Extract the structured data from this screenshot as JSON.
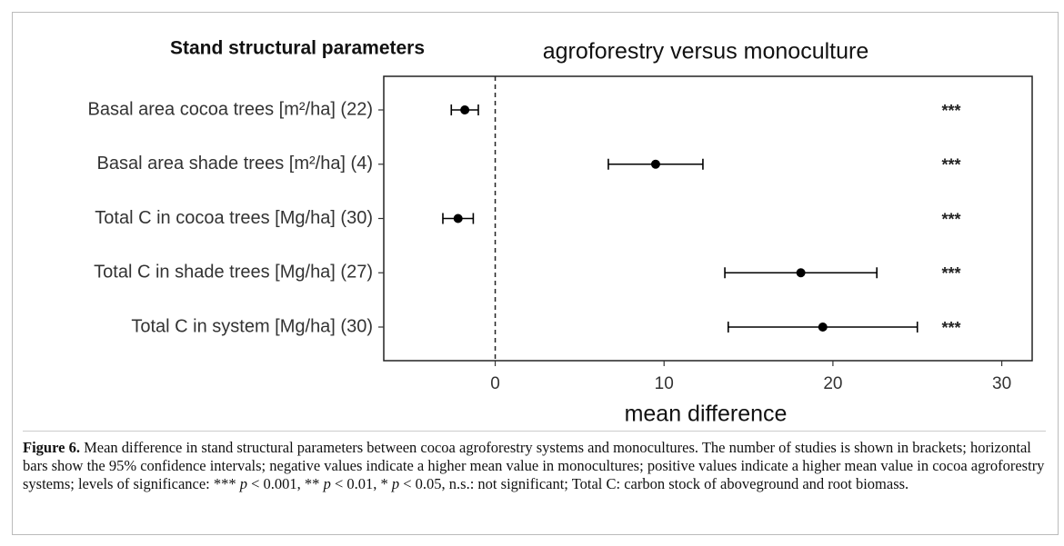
{
  "chart_data": {
    "type": "forest",
    "left_title": "Stand structural parameters",
    "title": "agroforestry versus monoculture",
    "xlabel": "mean difference",
    "categories": [
      "Basal area cocoa trees [m²/ha] (22)",
      "Basal area shade trees [m²/ha] (4)",
      "Total C in cocoa trees [Mg/ha] (30)",
      "Total C in shade trees [Mg/ha] (27)",
      "Total C in system [Mg/ha] (30)"
    ],
    "values": [
      -1.8,
      9.5,
      -2.2,
      18.1,
      19.4
    ],
    "lower": [
      -2.6,
      6.7,
      -3.1,
      13.6,
      13.8
    ],
    "upper": [
      -1.0,
      12.3,
      -1.3,
      22.6,
      25.0
    ],
    "significance": [
      "***",
      "***",
      "***",
      "***",
      "***"
    ],
    "color": "#000000",
    "reference_line": 0,
    "xlim": [
      -6.6,
      31.8
    ],
    "xticks": [
      0,
      10,
      20,
      30
    ]
  },
  "caption": {
    "label": "Figure 6.",
    "segments": [
      {
        "text": " Mean difference in stand structural parameters between cocoa agroforestry systems and monocultures. The number of studies is shown in brackets; horizontal bars show the 95% confidence intervals; negative values indicate a higher mean value in monocultures; positive values indicate a higher mean value in cocoa agroforestry systems; levels of significance: *** ",
        "italic": false
      },
      {
        "text": "p",
        "italic": true
      },
      {
        "text": " < 0.001, ** ",
        "italic": false
      },
      {
        "text": "p",
        "italic": true
      },
      {
        "text": " < 0.01, * ",
        "italic": false
      },
      {
        "text": "p",
        "italic": true
      },
      {
        "text": " < 0.05, n.s.: not significant; Total C: carbon stock of aboveground and root biomass.",
        "italic": false
      }
    ]
  }
}
